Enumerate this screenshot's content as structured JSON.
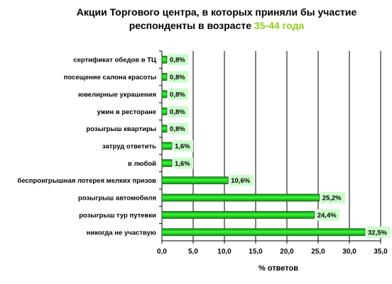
{
  "chart_data": {
    "type": "bar",
    "orientation": "horizontal",
    "title_line1": "Акции Торгового центра, в которых приняли бы участие",
    "title_line2": "респонденты в возрасте ",
    "title_highlight": "35-44 года",
    "xlabel": "% ответов",
    "xlim": [
      0,
      35
    ],
    "xticks": [
      "0,0",
      "5,0",
      "10,0",
      "15,0",
      "20,0",
      "25,0",
      "30,0",
      "35,0"
    ],
    "grid": true,
    "categories": [
      "сертификат обедов в ТЦ",
      "посещение салона красоты",
      "ювелирные украшения",
      "ужин в ресторане",
      "розыгрыш квартиры",
      "затруд ответить",
      "в любой",
      "беспроигрышная лотерея мелких призов",
      "розыгрыш автомобиля",
      "розыгрыш тур путевки",
      "никогда не участвую"
    ],
    "values": [
      0.8,
      0.8,
      0.8,
      0.8,
      0.8,
      1.6,
      1.6,
      10.6,
      25.2,
      24.4,
      32.5
    ],
    "labels": [
      "0,8%",
      "0,8%",
      "0,8%",
      "0,8%",
      "0,8%",
      "1,6%",
      "1,6%",
      "10,6%",
      "25,2%",
      "24,4%",
      "32,5%"
    ],
    "colors": {
      "bar_light": "#33ff33",
      "bar_dark": "#1a8a1a",
      "label_bg": "#ccffcc",
      "highlight": "#8fcc1f"
    }
  }
}
